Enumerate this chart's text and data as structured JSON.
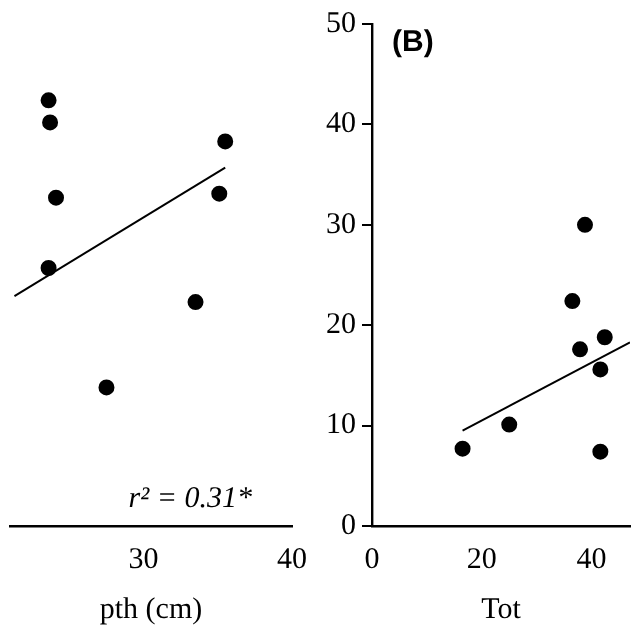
{
  "chart_data": [
    {
      "type": "scatter",
      "xlabel": "pth (cm)",
      "xlim": [
        21,
        40
      ],
      "xticks": [
        30,
        40
      ],
      "ylim": [
        0,
        50
      ],
      "tick_labels": "x",
      "grid": false,
      "legend": false,
      "marker": "circle",
      "annotations": [
        "r² = 0.31*"
      ],
      "series": [
        {
          "color": "#000000",
          "x": [
            23.6,
            23.7,
            35.5,
            24.1,
            35.1,
            23.6,
            33.5,
            27.5
          ],
          "values": [
            42.4,
            40.2,
            38.3,
            32.7,
            33.1,
            25.7,
            22.3,
            13.8
          ]
        },
        {
          "type": "line",
          "marker": "none",
          "color": "#000000",
          "x": [
            21.3,
            35.5
          ],
          "values": [
            22.9,
            35.7
          ]
        }
      ]
    },
    {
      "type": "scatter",
      "xlabel": "Tot",
      "xlim": [
        0,
        47
      ],
      "xticks": [
        0,
        20,
        40
      ],
      "ylim": [
        0,
        50
      ],
      "yticks": [
        0,
        10,
        20,
        30,
        40,
        50
      ],
      "grid": false,
      "legend": false,
      "marker": "circle",
      "annotations": [
        "(B)"
      ],
      "series": [
        {
          "color": "#000000",
          "x": [
            16.5,
            25,
            38.8,
            36.5,
            37.9,
            42.4,
            41.6,
            41.6
          ],
          "values": [
            7.7,
            10.1,
            30,
            22.4,
            17.6,
            18.8,
            15.6,
            7.4
          ]
        },
        {
          "type": "line",
          "marker": "none",
          "color": "#000000",
          "x": [
            16.5,
            47
          ],
          "values": [
            9.5,
            18.3
          ]
        }
      ]
    }
  ]
}
